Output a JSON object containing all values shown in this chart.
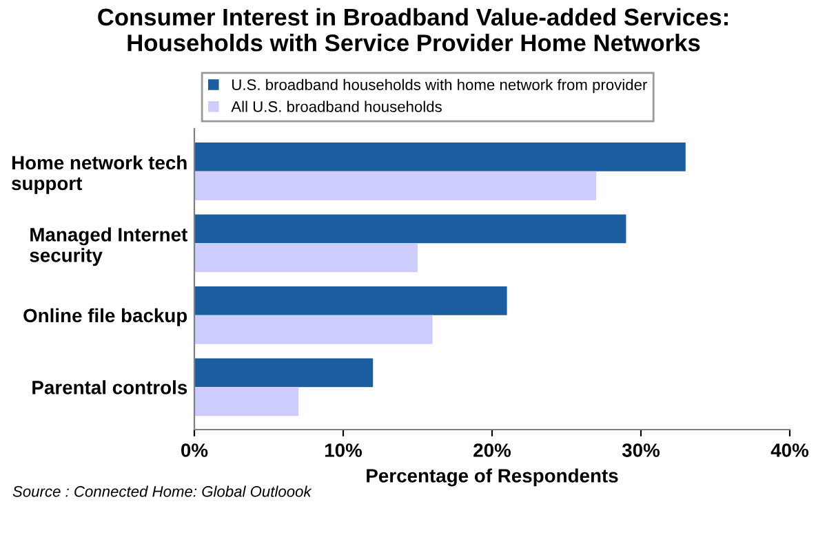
{
  "chart_data": {
    "type": "bar",
    "orientation": "horizontal",
    "title": "Consumer Interest in Broadband Value-added Services:\nHouseholds with Service Provider Home Networks",
    "categories": [
      "Home network tech\nsupport",
      "Managed Internet\nsecurity",
      "Online file backup",
      "Parental controls"
    ],
    "series": [
      {
        "name": "U.S. broadband households with home network from provider",
        "color": "#1b5e9f",
        "values": [
          33,
          29,
          21,
          12
        ]
      },
      {
        "name": "All U.S. broadband households",
        "color": "#ccccff",
        "values": [
          27,
          15,
          16,
          7
        ]
      }
    ],
    "xlim": [
      0,
      40
    ],
    "xticks": [
      {
        "value": 0,
        "label": "0%"
      },
      {
        "value": 10,
        "label": "10%"
      },
      {
        "value": 20,
        "label": "20%"
      },
      {
        "value": 30,
        "label": "30%"
      },
      {
        "value": 40,
        "label": "40%"
      }
    ],
    "xlabel": "Percentage of Respondents",
    "grid": false,
    "legend": "top left",
    "annotations": [
      "Source : Connected Home: Global Outloook"
    ]
  }
}
